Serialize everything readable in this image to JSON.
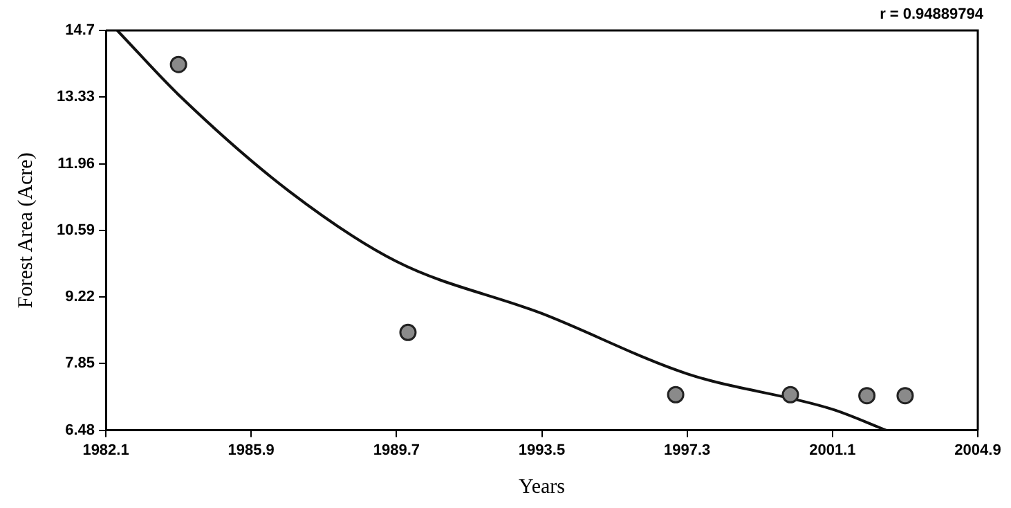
{
  "chart_data": {
    "type": "scatter",
    "xlabel": "Years",
    "ylabel": "Forest Area (Acre)",
    "annotations": [
      "r = 0.94889794"
    ],
    "xlim": [
      1982.1,
      2004.9
    ],
    "xticks": [
      1982.1,
      1985.9,
      1989.7,
      1993.5,
      1997.3,
      2001.1,
      2004.9
    ],
    "ylim": [
      6.48,
      14.7
    ],
    "yticks": [
      6.48,
      7.85,
      9.22,
      10.59,
      11.96,
      13.33,
      14.7
    ],
    "grid": false,
    "legend": false,
    "marker": "circle",
    "series": [
      {
        "type": "scatter",
        "color": "#8a8a8a",
        "x": [
          1984,
          1990,
          1997,
          2000,
          2002,
          2003
        ],
        "values": [
          14.0,
          8.49,
          7.21,
          7.21,
          7.19,
          7.19
        ]
      },
      {
        "type": "line",
        "color": "#111111",
        "line_style": "solid",
        "marker": "none",
        "x": [
          1982.4,
          1984.05,
          1986.9,
          1989.7,
          1993.5,
          1997.3,
          2001.1,
          2002.5
        ],
        "values": [
          14.7,
          13.34,
          11.39,
          9.95,
          8.88,
          7.64,
          6.91,
          6.48
        ]
      }
    ]
  }
}
